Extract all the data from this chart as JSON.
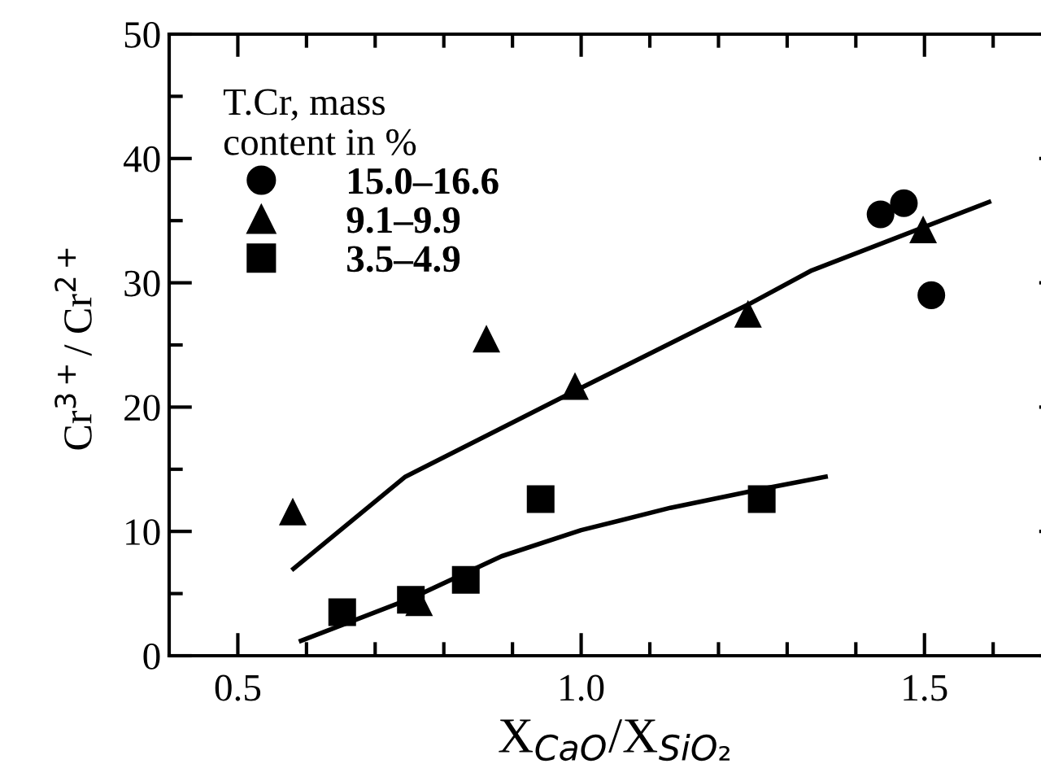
{
  "chart_data": {
    "type": "scatter",
    "xlabel": "X$_{CaO}$/X$_{SiO₂}$",
    "ylabel": "Cr$^{3+}$/ Cr$^{2+}$",
    "legend_title": "T.Cr, mass\ncontent in %",
    "legend": "top left",
    "grid": false,
    "xlim": [
      0.4,
      1.7
    ],
    "xticks": [
      {
        "value": 0.5,
        "label": "0.5"
      },
      {
        "value": 0.6,
        "label": null
      },
      {
        "value": 0.7,
        "label": null
      },
      {
        "value": 0.8,
        "label": null
      },
      {
        "value": 0.9,
        "label": null
      },
      {
        "value": 1.0,
        "label": "1.0"
      },
      {
        "value": 1.1,
        "label": null
      },
      {
        "value": 1.2,
        "label": null
      },
      {
        "value": 1.3,
        "label": null
      },
      {
        "value": 1.4,
        "label": null
      },
      {
        "value": 1.5,
        "label": "1.5"
      },
      {
        "value": 1.6,
        "label": null
      }
    ],
    "ylim": [
      0,
      50
    ],
    "yticks": [
      0,
      {
        "value": 5,
        "label": null
      },
      10,
      {
        "value": 15,
        "label": null
      },
      20,
      {
        "value": 25,
        "label": null
      },
      30,
      {
        "value": 35,
        "label": null
      },
      40,
      {
        "value": 45,
        "label": null
      },
      50
    ],
    "series": [
      {
        "name": "15.0–16.6",
        "color": "#000000",
        "marker": "circle",
        "x": [
          1.436,
          1.47,
          1.51
        ],
        "values": [
          35.5,
          36.4,
          29.0
        ]
      },
      {
        "name": "9.1–9.9",
        "color": "#000000",
        "marker": "triangle",
        "x": [
          0.58,
          0.764,
          0.862,
          0.991,
          1.243,
          1.498
        ],
        "values": [
          11.6,
          4.3,
          25.5,
          21.7,
          27.5,
          34.3
        ]
      },
      {
        "name": "3.5–4.9",
        "color": "#000000",
        "marker": "square",
        "x": [
          0.652,
          0.752,
          0.832,
          0.941,
          1.263
        ],
        "values": [
          3.5,
          4.5,
          6.1,
          12.6,
          12.6
        ]
      },
      {
        "type": "line",
        "color": "#000000",
        "line_style": "solid",
        "x": [
          0.581,
          0.744,
          0.991,
          1.245,
          1.336,
          1.594
        ],
        "values": [
          7.0,
          14.4,
          21.3,
          28.3,
          31.0,
          36.5
        ]
      },
      {
        "type": "line",
        "color": "#000000",
        "line_style": "solid",
        "x": [
          0.592,
          0.752,
          0.884,
          1.0,
          1.13,
          1.262,
          1.356
        ],
        "values": [
          1.2,
          4.6,
          8.0,
          10.1,
          11.9,
          13.4,
          14.4
        ]
      }
    ]
  }
}
